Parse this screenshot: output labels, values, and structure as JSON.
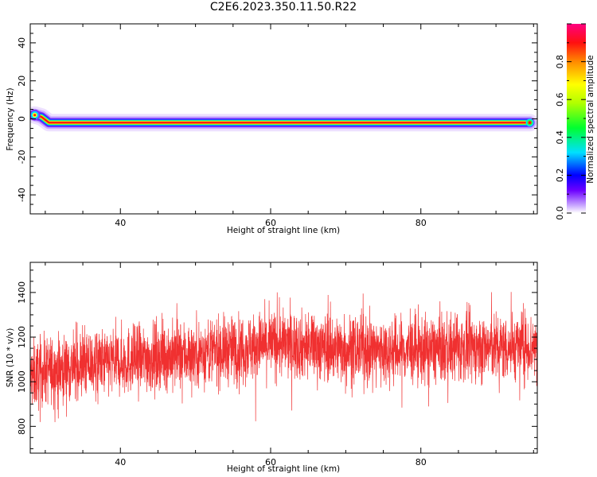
{
  "title": "C2E6.2023.350.11.50.R22",
  "chart_data": [
    {
      "type": "heatmap",
      "title": "",
      "xlabel": "Height of straight line (km)",
      "ylabel": "Frequency (Hz)",
      "xlim": [
        28,
        95.5
      ],
      "ylim": [
        -50,
        50
      ],
      "x_ticks": [
        40,
        60,
        80
      ],
      "y_ticks": [
        -40,
        -20,
        0,
        20,
        40
      ],
      "ridge": {
        "description_points": [
          [
            28.6,
            2
          ],
          [
            29.5,
            1
          ],
          [
            30.5,
            -2
          ],
          [
            35,
            -2
          ],
          [
            45,
            -2
          ],
          [
            60,
            -2
          ],
          [
            75,
            -2
          ],
          [
            90,
            -2
          ],
          [
            94.5,
            -2
          ]
        ],
        "start_blob_x": 28.6,
        "end_x": 94.5
      },
      "colorbar": {
        "label": "Normalized spectral amplitude",
        "range": [
          0.0,
          1.0
        ],
        "ticks": [
          0.0,
          0.2,
          0.4,
          0.6,
          0.8
        ]
      }
    },
    {
      "type": "line",
      "title": "",
      "xlabel": "Height of straight line (km)",
      "ylabel": "SNR (10 * v/v)",
      "xlim": [
        28,
        95.5
      ],
      "ylim": [
        680,
        1535
      ],
      "x_ticks": [
        40,
        60,
        80
      ],
      "y_ticks": [
        800,
        1000,
        1200,
        1400
      ],
      "color": "#f03030",
      "series": [
        {
          "trend_x": [
            28,
            30,
            35,
            40,
            45,
            50,
            55,
            60,
            65,
            70,
            75,
            80,
            85,
            90,
            95.5
          ],
          "trend_y": [
            1020,
            1050,
            1075,
            1090,
            1110,
            1125,
            1145,
            1170,
            1160,
            1150,
            1140,
            1140,
            1150,
            1155,
            1160
          ],
          "noise_amplitude": 75,
          "samples": 3200
        }
      ]
    }
  ]
}
